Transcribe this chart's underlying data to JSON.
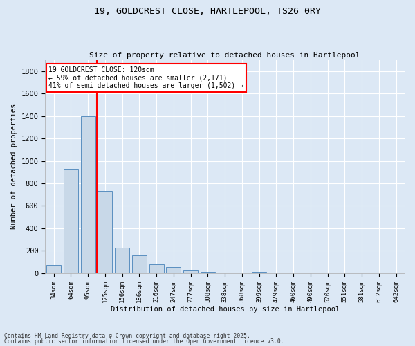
{
  "title_line1": "19, GOLDCREST CLOSE, HARTLEPOOL, TS26 0RY",
  "title_line2": "Size of property relative to detached houses in Hartlepool",
  "xlabel": "Distribution of detached houses by size in Hartlepool",
  "ylabel": "Number of detached properties",
  "categories": [
    "34sqm",
    "64sqm",
    "95sqm",
    "125sqm",
    "156sqm",
    "186sqm",
    "216sqm",
    "247sqm",
    "277sqm",
    "308sqm",
    "338sqm",
    "368sqm",
    "399sqm",
    "429sqm",
    "460sqm",
    "490sqm",
    "520sqm",
    "551sqm",
    "581sqm",
    "612sqm",
    "642sqm"
  ],
  "values": [
    75,
    930,
    1400,
    730,
    230,
    160,
    80,
    55,
    30,
    10,
    0,
    0,
    10,
    0,
    0,
    0,
    0,
    0,
    0,
    0,
    0
  ],
  "bar_color": "#c8d8e8",
  "bar_edge_color": "#5a8fc0",
  "background_color": "#dce8f5",
  "grid_color": "#ffffff",
  "vline_color": "red",
  "annotation_line1": "19 GOLDCREST CLOSE: 120sqm",
  "annotation_line2": "← 59% of detached houses are smaller (2,171)",
  "annotation_line3": "41% of semi-detached houses are larger (1,502) →",
  "ylim": [
    0,
    1900
  ],
  "yticks": [
    0,
    200,
    400,
    600,
    800,
    1000,
    1200,
    1400,
    1600,
    1800
  ],
  "footer_line1": "Contains HM Land Registry data © Crown copyright and database right 2025.",
  "footer_line2": "Contains public sector information licensed under the Open Government Licence v3.0."
}
